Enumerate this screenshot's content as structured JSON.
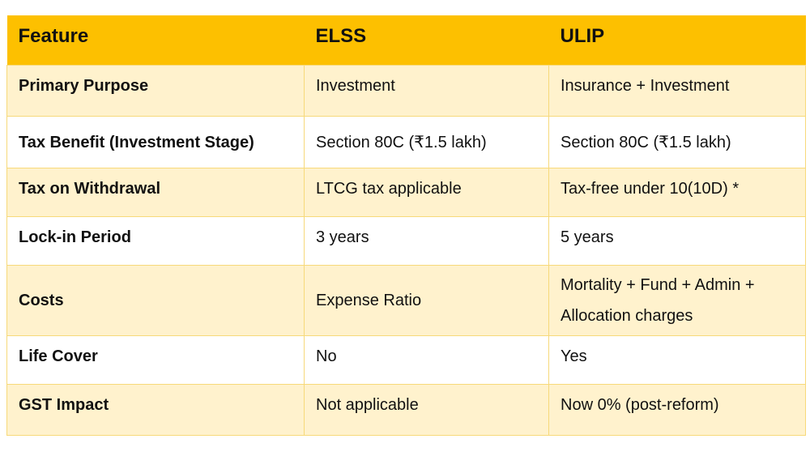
{
  "table": {
    "headers": [
      "Feature",
      "ELSS",
      "ULIP"
    ],
    "rows": [
      {
        "feature": "Primary Purpose",
        "elss": "Investment",
        "ulip": "Insurance + Investment"
      },
      {
        "feature": "Tax Benefit (Investment Stage)",
        "elss": "Section 80C (₹1.5 lakh)",
        "ulip": "Section 80C (₹1.5 lakh)"
      },
      {
        "feature": "Tax on Withdrawal",
        "elss": "LTCG tax applicable",
        "ulip": "Tax-free under 10(10D) *"
      },
      {
        "feature": "Lock-in Period",
        "elss": "3 years",
        "ulip": "5 years"
      },
      {
        "feature": "Costs",
        "elss": "Expense Ratio",
        "ulip": "Mortality + Fund + Admin + Allocation charges"
      },
      {
        "feature": "Life Cover",
        "elss": "No",
        "ulip": "Yes"
      },
      {
        "feature": "GST Impact",
        "elss": "Not applicable",
        "ulip": "Now 0% (post-reform)"
      }
    ]
  },
  "colors": {
    "header_bg": "#fdc000",
    "odd_row_bg": "#fff2cd",
    "even_row_bg": "#ffffff",
    "border": "#f7d97a"
  }
}
